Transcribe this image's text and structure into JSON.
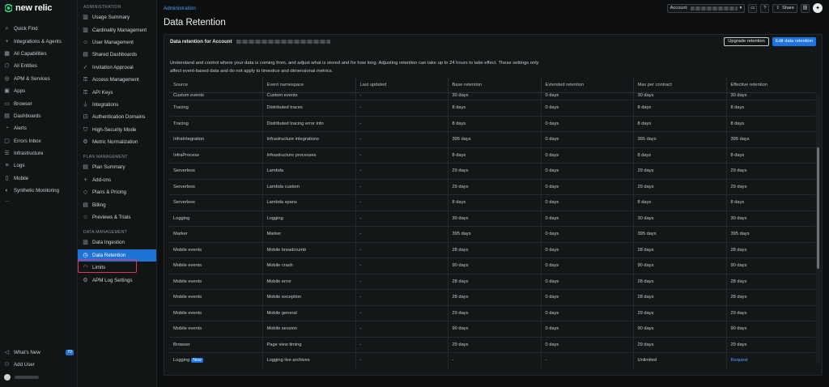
{
  "app": {
    "logo_text": "new relic",
    "brand_color": "#1ce783"
  },
  "leftnav": {
    "items": [
      {
        "label": "Quick Find",
        "icon": "search-icon"
      },
      {
        "label": "Integrations & Agents",
        "icon": "plus-icon"
      },
      {
        "label": "All Capabilities",
        "icon": "grid-icon"
      },
      {
        "label": "All Entities",
        "icon": "entities-icon"
      },
      {
        "label": "APM & Services",
        "icon": "globe-icon"
      },
      {
        "label": "Apps",
        "icon": "apps-icon"
      },
      {
        "label": "Browser",
        "icon": "browser-icon"
      },
      {
        "label": "Dashboards",
        "icon": "dashboard-icon"
      },
      {
        "label": "Alerts",
        "icon": "bell-icon"
      },
      {
        "label": "Errors Inbox",
        "icon": "inbox-icon"
      },
      {
        "label": "Infrastructure",
        "icon": "server-icon"
      },
      {
        "label": "Logs",
        "icon": "logs-icon"
      },
      {
        "label": "Mobile",
        "icon": "mobile-icon"
      },
      {
        "label": "Synthetic Monitoring",
        "icon": "synthetics-icon"
      }
    ],
    "more": "...",
    "whats_new": "What's New",
    "whats_new_count": "70",
    "add_user": "Add User"
  },
  "subnav": {
    "sections": [
      {
        "heading": "ADMINISTRATION",
        "items": [
          {
            "label": "Usage Summary",
            "icon": "bar-chart-icon"
          },
          {
            "label": "Cardinality Management",
            "icon": "bar-chart-icon"
          },
          {
            "label": "User Management",
            "icon": "user-icon"
          },
          {
            "label": "Shared Dashboards",
            "icon": "dashboard-icon"
          },
          {
            "label": "Invitation Approval",
            "icon": "check-icon"
          },
          {
            "label": "Access Management",
            "icon": "key-icon"
          },
          {
            "label": "API Keys",
            "icon": "key-icon"
          },
          {
            "label": "Integrations",
            "icon": "plug-icon"
          },
          {
            "label": "Authentication Domains",
            "icon": "lock-icon"
          },
          {
            "label": "High-Security Mode",
            "icon": "shield-icon"
          },
          {
            "label": "Metric Normalization",
            "icon": "settings-icon"
          }
        ]
      },
      {
        "heading": "PLAN MANAGEMENT",
        "items": [
          {
            "label": "Plan Summary",
            "icon": "document-icon"
          },
          {
            "label": "Add-ons",
            "icon": "plus-icon"
          },
          {
            "label": "Plans & Pricing",
            "icon": "tag-icon"
          },
          {
            "label": "Billing",
            "icon": "document-icon"
          },
          {
            "label": "Previews & Trials",
            "icon": "star-icon"
          }
        ]
      },
      {
        "heading": "DATA MANAGEMENT",
        "items": [
          {
            "label": "Data Ingestion",
            "icon": "bar-chart-icon"
          },
          {
            "label": "Data Retention",
            "icon": "clock-icon",
            "active": true
          },
          {
            "label": "Limits",
            "icon": "gauge-icon"
          },
          {
            "label": "APM Log Settings",
            "icon": "settings-icon"
          }
        ]
      }
    ]
  },
  "topbar": {
    "breadcrumb": "Administration",
    "account_label": "Account:",
    "share_label": "Share"
  },
  "page": {
    "title": "Data Retention"
  },
  "panel": {
    "title": "Data retention for Account",
    "upgrade_button": "Upgrade retention",
    "edit_button": "Edit data retention",
    "description": "Understand and control where your data is coming from, and adjust what is stored and for how long. Adjusting retention can take up to 24 hours to take effect. These settings only affect event-based data and do not apply to timeslice and dimensional metrics."
  },
  "table": {
    "columns": [
      "Source",
      "Event namespace",
      "Last updated",
      "Base retention",
      "Extended retention",
      "Max per contract",
      "Effective retention"
    ],
    "partial_row": [
      "Custom events",
      "Custom events",
      "-",
      "30 days",
      "0 days",
      "30 days",
      "30 days"
    ],
    "rows": [
      [
        "Tracing",
        "Distributed traces",
        "-",
        "8 days",
        "0 days",
        "8 days",
        "8 days"
      ],
      [
        "Tracing",
        "Distributed tracing error info",
        "-",
        "8 days",
        "0 days",
        "8 days",
        "8 days"
      ],
      [
        "InfraIntegration",
        "Infrastructure integrations",
        "-",
        "395 days",
        "0 days",
        "395 days",
        "395 days"
      ],
      [
        "InfraProcess",
        "Infrastructure processes",
        "-",
        "8 days",
        "0 days",
        "8 days",
        "8 days"
      ],
      [
        "Serverless",
        "Lambda",
        "-",
        "29 days",
        "0 days",
        "29 days",
        "29 days"
      ],
      [
        "Serverless",
        "Lambda custom",
        "-",
        "29 days",
        "0 days",
        "29 days",
        "29 days"
      ],
      [
        "Serverless",
        "Lambda spans",
        "-",
        "8 days",
        "0 days",
        "8 days",
        "8 days"
      ],
      [
        "Logging",
        "Logging",
        "-",
        "30 days",
        "0 days",
        "30 days",
        "30 days"
      ],
      [
        "Marker",
        "Marker",
        "-",
        "395 days",
        "0 days",
        "395 days",
        "395 days"
      ],
      [
        "Mobile events",
        "Mobile breadcrumb",
        "-",
        "28 days",
        "0 days",
        "28 days",
        "28 days"
      ],
      [
        "Mobile events",
        "Mobile crash",
        "-",
        "90 days",
        "0 days",
        "90 days",
        "90 days"
      ],
      [
        "Mobile events",
        "Mobile error",
        "-",
        "28 days",
        "0 days",
        "28 days",
        "28 days"
      ],
      [
        "Mobile events",
        "Mobile exception",
        "-",
        "28 days",
        "0 days",
        "28 days",
        "28 days"
      ],
      [
        "Mobile events",
        "Mobile general",
        "-",
        "29 days",
        "0 days",
        "29 days",
        "29 days"
      ],
      [
        "Mobile events",
        "Mobile session",
        "-",
        "90 days",
        "0 days",
        "90 days",
        "90 days"
      ],
      [
        "Browser",
        "Page view timing",
        "-",
        "29 days",
        "0 days",
        "29 days",
        "29 days"
      ]
    ],
    "last_row": {
      "source": "Logging",
      "tag": "New",
      "namespace": "Logging live archives",
      "last_updated": "-",
      "base": "-",
      "extended": "-",
      "max": "Unlimited",
      "effective": "Request"
    }
  }
}
